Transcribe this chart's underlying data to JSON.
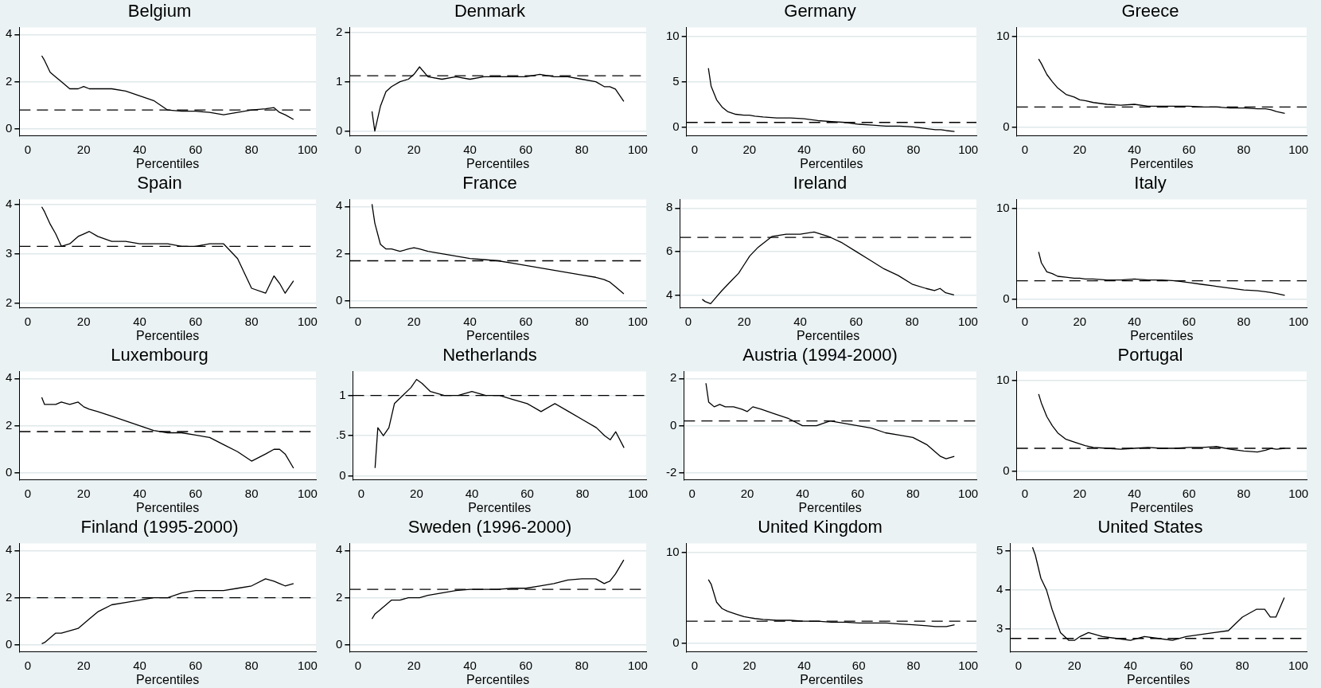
{
  "chart_data": [
    {
      "type": "line",
      "title": "Belgium",
      "xlabel": "Percentiles",
      "x": [
        5,
        6,
        8,
        10,
        12,
        15,
        18,
        20,
        22,
        25,
        30,
        35,
        40,
        45,
        50,
        55,
        60,
        65,
        70,
        75,
        80,
        85,
        88,
        90,
        92,
        95
      ],
      "xlim": [
        -3,
        103
      ],
      "xticks": [
        0,
        20,
        40,
        60,
        80,
        100
      ],
      "ylim": [
        -0.3,
        4.3
      ],
      "yticks": [
        0,
        2,
        4
      ],
      "grid": "y",
      "marker": "none",
      "line_style": "solid",
      "ref_lines": [
        {
          "axis": "y",
          "value": 0.8,
          "line_style": "dashed",
          "color": "#000000"
        }
      ],
      "series": [
        {
          "color": "#000000",
          "values": [
            3.1,
            2.9,
            2.4,
            2.2,
            2.0,
            1.7,
            1.7,
            1.8,
            1.7,
            1.7,
            1.7,
            1.6,
            1.4,
            1.2,
            0.8,
            0.75,
            0.75,
            0.7,
            0.6,
            0.7,
            0.8,
            0.85,
            0.9,
            0.7,
            0.6,
            0.4
          ]
        }
      ]
    },
    {
      "type": "line",
      "title": "Denmark",
      "xlabel": "Percentiles",
      "x": [
        5,
        6,
        8,
        10,
        12,
        15,
        18,
        20,
        22,
        25,
        30,
        35,
        40,
        45,
        50,
        55,
        60,
        65,
        70,
        75,
        80,
        85,
        88,
        90,
        92,
        95
      ],
      "xlim": [
        -3,
        103
      ],
      "xticks": [
        0,
        20,
        40,
        60,
        80,
        100
      ],
      "ylim": [
        -0.1,
        2.1
      ],
      "yticks": [
        0,
        1,
        2
      ],
      "grid": "y",
      "marker": "none",
      "line_style": "solid",
      "ref_lines": [
        {
          "axis": "y",
          "value": 1.12,
          "line_style": "dashed",
          "color": "#000000"
        }
      ],
      "series": [
        {
          "color": "#000000",
          "values": [
            0.4,
            0.0,
            0.5,
            0.8,
            0.9,
            1.0,
            1.05,
            1.15,
            1.3,
            1.1,
            1.05,
            1.1,
            1.05,
            1.1,
            1.1,
            1.1,
            1.1,
            1.15,
            1.1,
            1.1,
            1.05,
            1.0,
            0.9,
            0.9,
            0.85,
            0.6
          ]
        }
      ]
    },
    {
      "type": "line",
      "title": "Germany",
      "xlabel": "Percentiles",
      "x": [
        5,
        6,
        8,
        10,
        12,
        15,
        18,
        20,
        22,
        25,
        30,
        35,
        40,
        45,
        50,
        55,
        60,
        65,
        70,
        75,
        80,
        85,
        88,
        90,
        92,
        95
      ],
      "xlim": [
        -3,
        103
      ],
      "xticks": [
        0,
        20,
        40,
        60,
        80,
        100
      ],
      "ylim": [
        -1,
        11
      ],
      "yticks": [
        0,
        5,
        10
      ],
      "grid": "y",
      "marker": "none",
      "line_style": "solid",
      "ref_lines": [
        {
          "axis": "y",
          "value": 0.5,
          "line_style": "dashed",
          "color": "#000000"
        }
      ],
      "series": [
        {
          "color": "#000000",
          "values": [
            6.5,
            4.5,
            3.0,
            2.2,
            1.7,
            1.4,
            1.3,
            1.3,
            1.2,
            1.1,
            1.0,
            1.0,
            0.9,
            0.7,
            0.6,
            0.5,
            0.3,
            0.2,
            0.1,
            0.1,
            0.0,
            -0.2,
            -0.3,
            -0.3,
            -0.4,
            -0.5
          ]
        }
      ]
    },
    {
      "type": "line",
      "title": "Greece",
      "xlabel": "Percentiles",
      "x": [
        5,
        6,
        8,
        10,
        12,
        15,
        18,
        20,
        22,
        25,
        30,
        35,
        40,
        45,
        50,
        55,
        60,
        65,
        70,
        75,
        80,
        85,
        88,
        90,
        92,
        95
      ],
      "xlim": [
        -3,
        103
      ],
      "xticks": [
        0,
        20,
        40,
        60,
        80,
        100
      ],
      "ylim": [
        -1,
        11
      ],
      "yticks": [
        0,
        10
      ],
      "grid": "y",
      "marker": "none",
      "line_style": "solid",
      "ref_lines": [
        {
          "axis": "y",
          "value": 2.2,
          "line_style": "dashed",
          "color": "#000000"
        }
      ],
      "series": [
        {
          "color": "#000000",
          "values": [
            7.5,
            7,
            5.8,
            5,
            4.3,
            3.6,
            3.3,
            3.0,
            2.9,
            2.7,
            2.5,
            2.4,
            2.5,
            2.3,
            2.3,
            2.3,
            2.3,
            2.2,
            2.2,
            2.1,
            2.1,
            2.0,
            2.0,
            1.9,
            1.7,
            1.5
          ]
        }
      ]
    },
    {
      "type": "line",
      "title": "Spain",
      "xlabel": "Percentiles",
      "x": [
        5,
        6,
        8,
        10,
        12,
        15,
        18,
        20,
        22,
        25,
        30,
        35,
        40,
        45,
        50,
        55,
        60,
        65,
        70,
        75,
        80,
        85,
        88,
        90,
        92,
        95
      ],
      "xlim": [
        -3,
        103
      ],
      "xticks": [
        0,
        20,
        40,
        60,
        80,
        100
      ],
      "ylim": [
        1.9,
        4.1
      ],
      "yticks": [
        2,
        3,
        4
      ],
      "grid": "y",
      "marker": "none",
      "line_style": "solid",
      "ref_lines": [
        {
          "axis": "y",
          "value": 3.15,
          "line_style": "dashed",
          "color": "#000000"
        }
      ],
      "series": [
        {
          "color": "#000000",
          "values": [
            3.95,
            3.85,
            3.6,
            3.4,
            3.15,
            3.2,
            3.35,
            3.4,
            3.45,
            3.35,
            3.25,
            3.25,
            3.2,
            3.2,
            3.2,
            3.15,
            3.15,
            3.2,
            3.2,
            2.9,
            2.3,
            2.2,
            2.55,
            2.4,
            2.2,
            2.45
          ]
        }
      ]
    },
    {
      "type": "line",
      "title": "France",
      "xlabel": "Percentiles",
      "x": [
        5,
        6,
        8,
        10,
        12,
        15,
        18,
        20,
        22,
        25,
        30,
        35,
        40,
        45,
        50,
        55,
        60,
        65,
        70,
        75,
        80,
        85,
        88,
        90,
        92,
        95
      ],
      "xlim": [
        -3,
        103
      ],
      "xticks": [
        0,
        20,
        40,
        60,
        80,
        100
      ],
      "ylim": [
        -0.3,
        4.3
      ],
      "yticks": [
        0,
        2,
        4
      ],
      "grid": "y",
      "marker": "none",
      "line_style": "solid",
      "ref_lines": [
        {
          "axis": "y",
          "value": 1.7,
          "line_style": "dashed",
          "color": "#000000"
        }
      ],
      "series": [
        {
          "color": "#000000",
          "values": [
            4.1,
            3.3,
            2.4,
            2.2,
            2.2,
            2.1,
            2.2,
            2.25,
            2.2,
            2.1,
            2.0,
            1.9,
            1.8,
            1.75,
            1.7,
            1.6,
            1.5,
            1.4,
            1.3,
            1.2,
            1.1,
            1.0,
            0.9,
            0.8,
            0.6,
            0.3
          ]
        }
      ]
    },
    {
      "type": "line",
      "title": "Ireland",
      "xlabel": "Percentiles",
      "x": [
        5,
        6,
        8,
        10,
        12,
        15,
        18,
        20,
        22,
        25,
        30,
        35,
        40,
        45,
        50,
        55,
        60,
        65,
        70,
        75,
        80,
        85,
        88,
        90,
        92,
        95
      ],
      "xlim": [
        -3,
        103
      ],
      "xticks": [
        0,
        20,
        40,
        60,
        80,
        100
      ],
      "ylim": [
        3.4,
        8.4
      ],
      "yticks": [
        4,
        6,
        8
      ],
      "grid": "y",
      "marker": "none",
      "line_style": "solid",
      "ref_lines": [
        {
          "axis": "y",
          "value": 6.65,
          "line_style": "dashed",
          "color": "#000000"
        }
      ],
      "series": [
        {
          "color": "#000000",
          "values": [
            3.8,
            3.7,
            3.6,
            3.9,
            4.2,
            4.6,
            5.0,
            5.4,
            5.8,
            6.2,
            6.7,
            6.8,
            6.8,
            6.9,
            6.7,
            6.4,
            6.0,
            5.6,
            5.2,
            4.9,
            4.5,
            4.3,
            4.2,
            4.3,
            4.1,
            4.0
          ]
        }
      ]
    },
    {
      "type": "line",
      "title": "Italy",
      "xlabel": "Percentiles",
      "x": [
        5,
        6,
        8,
        10,
        12,
        15,
        18,
        20,
        22,
        25,
        30,
        35,
        40,
        45,
        50,
        55,
        60,
        65,
        70,
        75,
        80,
        85,
        88,
        90,
        92,
        95
      ],
      "xlim": [
        -3,
        103
      ],
      "xticks": [
        0,
        20,
        40,
        60,
        80,
        100
      ],
      "ylim": [
        -1,
        11
      ],
      "yticks": [
        0,
        10
      ],
      "grid": "y",
      "marker": "none",
      "line_style": "solid",
      "ref_lines": [
        {
          "axis": "y",
          "value": 2.0,
          "line_style": "dashed",
          "color": "#000000"
        }
      ],
      "series": [
        {
          "color": "#000000",
          "values": [
            5.2,
            4.0,
            3.0,
            2.8,
            2.5,
            2.4,
            2.3,
            2.3,
            2.2,
            2.2,
            2.1,
            2.1,
            2.2,
            2.1,
            2.1,
            2.0,
            1.8,
            1.6,
            1.4,
            1.2,
            1.0,
            0.9,
            0.8,
            0.7,
            0.6,
            0.4
          ]
        }
      ]
    },
    {
      "type": "line",
      "title": "Luxembourg",
      "xlabel": "Percentiles",
      "x": [
        5,
        6,
        8,
        10,
        12,
        15,
        18,
        20,
        22,
        25,
        30,
        35,
        40,
        45,
        50,
        55,
        60,
        65,
        70,
        75,
        80,
        85,
        88,
        90,
        92,
        95
      ],
      "xlim": [
        -3,
        103
      ],
      "xticks": [
        0,
        20,
        40,
        60,
        80,
        100
      ],
      "ylim": [
        -0.3,
        4.3
      ],
      "yticks": [
        0,
        2,
        4
      ],
      "grid": "y",
      "marker": "none",
      "line_style": "solid",
      "ref_lines": [
        {
          "axis": "y",
          "value": 1.75,
          "line_style": "dashed",
          "color": "#000000"
        }
      ],
      "series": [
        {
          "color": "#000000",
          "values": [
            3.2,
            2.9,
            2.9,
            2.9,
            3.0,
            2.9,
            3.0,
            2.8,
            2.7,
            2.6,
            2.4,
            2.2,
            2.0,
            1.8,
            1.7,
            1.7,
            1.6,
            1.5,
            1.2,
            0.9,
            0.5,
            0.8,
            1.0,
            1.0,
            0.8,
            0.2
          ]
        }
      ]
    },
    {
      "type": "line",
      "title": "Netherlands",
      "xlabel": "Percentiles",
      "x": [
        5,
        6,
        8,
        10,
        12,
        15,
        18,
        20,
        22,
        25,
        30,
        35,
        40,
        45,
        50,
        55,
        60,
        65,
        70,
        75,
        80,
        85,
        88,
        90,
        92,
        95
      ],
      "xlim": [
        -3,
        103
      ],
      "xticks": [
        0,
        20,
        40,
        60,
        80,
        100
      ],
      "ylim": [
        -0.05,
        1.3
      ],
      "yticks": [
        0,
        {
          "value": 0.5,
          "label": ".5"
        },
        1
      ],
      "grid": "y",
      "marker": "none",
      "line_style": "solid",
      "ref_lines": [
        {
          "axis": "y",
          "value": 1.0,
          "line_style": "dashed",
          "color": "#000000"
        }
      ],
      "series": [
        {
          "color": "#000000",
          "values": [
            0.1,
            0.6,
            0.5,
            0.6,
            0.9,
            1.0,
            1.1,
            1.2,
            1.15,
            1.05,
            1.0,
            1.0,
            1.05,
            1.0,
            1.0,
            0.95,
            0.9,
            0.8,
            0.9,
            0.8,
            0.7,
            0.6,
            0.5,
            0.45,
            0.55,
            0.35
          ]
        }
      ]
    },
    {
      "type": "line",
      "title": "Austria (1994-2000)",
      "xlabel": "Percentiles",
      "x": [
        5,
        6,
        8,
        10,
        12,
        15,
        18,
        20,
        22,
        25,
        30,
        35,
        40,
        45,
        50,
        55,
        60,
        65,
        70,
        75,
        80,
        85,
        88,
        90,
        92,
        95
      ],
      "xlim": [
        -3,
        103
      ],
      "xticks": [
        0,
        20,
        40,
        60,
        80,
        100
      ],
      "ylim": [
        -2.3,
        2.3
      ],
      "yticks": [
        -2,
        0,
        2
      ],
      "grid": "y",
      "marker": "none",
      "line_style": "solid",
      "ref_lines": [
        {
          "axis": "y",
          "value": 0.2,
          "line_style": "dashed",
          "color": "#000000"
        }
      ],
      "series": [
        {
          "color": "#000000",
          "values": [
            1.8,
            1.0,
            0.8,
            0.9,
            0.8,
            0.8,
            0.7,
            0.6,
            0.8,
            0.7,
            0.5,
            0.3,
            0.0,
            0.0,
            0.2,
            0.1,
            0.0,
            -0.1,
            -0.3,
            -0.4,
            -0.5,
            -0.8,
            -1.1,
            -1.3,
            -1.4,
            -1.3
          ]
        }
      ]
    },
    {
      "type": "line",
      "title": "Portugal",
      "xlabel": "Percentiles",
      "x": [
        5,
        6,
        8,
        10,
        12,
        15,
        18,
        20,
        22,
        25,
        30,
        35,
        40,
        45,
        50,
        55,
        60,
        65,
        70,
        75,
        80,
        85,
        88,
        90,
        92,
        95
      ],
      "xlim": [
        -3,
        103
      ],
      "xticks": [
        0,
        20,
        40,
        60,
        80,
        100
      ],
      "ylim": [
        -1,
        11
      ],
      "yticks": [
        0,
        10
      ],
      "grid": "y",
      "marker": "none",
      "line_style": "solid",
      "ref_lines": [
        {
          "axis": "y",
          "value": 2.5,
          "line_style": "dashed",
          "color": "#000000"
        }
      ],
      "series": [
        {
          "color": "#000000",
          "values": [
            8.5,
            7.5,
            6.0,
            5.0,
            4.2,
            3.5,
            3.2,
            3.0,
            2.8,
            2.6,
            2.5,
            2.4,
            2.5,
            2.6,
            2.5,
            2.5,
            2.6,
            2.6,
            2.7,
            2.4,
            2.2,
            2.1,
            2.3,
            2.5,
            2.4,
            2.5
          ]
        }
      ]
    },
    {
      "type": "line",
      "title": "Finland (1995-2000)",
      "xlabel": "Percentiles",
      "x": [
        5,
        6,
        8,
        10,
        12,
        15,
        18,
        20,
        22,
        25,
        30,
        35,
        40,
        45,
        50,
        55,
        60,
        65,
        70,
        75,
        80,
        85,
        88,
        90,
        92,
        95
      ],
      "xlim": [
        -3,
        103
      ],
      "xticks": [
        0,
        20,
        40,
        60,
        80,
        100
      ],
      "ylim": [
        -0.3,
        4.3
      ],
      "yticks": [
        0,
        2,
        4
      ],
      "grid": "y",
      "marker": "none",
      "line_style": "solid",
      "ref_lines": [
        {
          "axis": "y",
          "value": 2.0,
          "line_style": "dashed",
          "color": "#000000"
        }
      ],
      "series": [
        {
          "color": "#000000",
          "values": [
            0.05,
            0.1,
            0.3,
            0.5,
            0.5,
            0.6,
            0.7,
            0.9,
            1.1,
            1.4,
            1.7,
            1.8,
            1.9,
            2.0,
            2.0,
            2.2,
            2.3,
            2.3,
            2.3,
            2.4,
            2.5,
            2.8,
            2.7,
            2.6,
            2.5,
            2.6
          ]
        }
      ]
    },
    {
      "type": "line",
      "title": "Sweden (1996-2000)",
      "xlabel": "Percentiles",
      "x": [
        5,
        6,
        8,
        10,
        12,
        15,
        18,
        20,
        22,
        25,
        30,
        35,
        40,
        45,
        50,
        55,
        60,
        65,
        70,
        75,
        80,
        85,
        88,
        90,
        92,
        95
      ],
      "xlim": [
        -3,
        103
      ],
      "xticks": [
        0,
        20,
        40,
        60,
        80,
        100
      ],
      "ylim": [
        -0.3,
        4.3
      ],
      "yticks": [
        0,
        2,
        4
      ],
      "grid": "y",
      "marker": "none",
      "line_style": "solid",
      "ref_lines": [
        {
          "axis": "y",
          "value": 2.35,
          "line_style": "dashed",
          "color": "#000000"
        }
      ],
      "series": [
        {
          "color": "#000000",
          "values": [
            1.1,
            1.3,
            1.5,
            1.7,
            1.9,
            1.9,
            2.0,
            2.0,
            2.0,
            2.1,
            2.2,
            2.3,
            2.35,
            2.35,
            2.35,
            2.4,
            2.4,
            2.5,
            2.6,
            2.75,
            2.8,
            2.8,
            2.6,
            2.7,
            3.0,
            3.6
          ]
        }
      ]
    },
    {
      "type": "line",
      "title": "United Kingdom",
      "xlabel": "Percentiles",
      "x": [
        5,
        6,
        8,
        10,
        12,
        15,
        18,
        20,
        22,
        25,
        30,
        35,
        40,
        45,
        50,
        55,
        60,
        65,
        70,
        75,
        80,
        85,
        88,
        90,
        92,
        95
      ],
      "xlim": [
        -3,
        103
      ],
      "xticks": [
        0,
        20,
        40,
        60,
        80,
        100
      ],
      "ylim": [
        -1,
        11
      ],
      "yticks": [
        0,
        10
      ],
      "grid": "y",
      "marker": "none",
      "line_style": "solid",
      "ref_lines": [
        {
          "axis": "y",
          "value": 2.4,
          "line_style": "dashed",
          "color": "#000000"
        }
      ],
      "series": [
        {
          "color": "#000000",
          "values": [
            7.0,
            6.5,
            4.5,
            3.8,
            3.5,
            3.2,
            2.9,
            2.8,
            2.7,
            2.6,
            2.5,
            2.5,
            2.4,
            2.4,
            2.3,
            2.3,
            2.2,
            2.2,
            2.2,
            2.1,
            2.0,
            1.9,
            1.8,
            1.8,
            1.8,
            2.0
          ]
        }
      ]
    },
    {
      "type": "line",
      "title": "United States",
      "xlabel": "Percentiles",
      "x": [
        5,
        6,
        8,
        10,
        12,
        15,
        18,
        20,
        22,
        25,
        30,
        35,
        40,
        45,
        50,
        55,
        60,
        65,
        70,
        75,
        80,
        85,
        88,
        90,
        92,
        95
      ],
      "xlim": [
        -3,
        103
      ],
      "xticks": [
        0,
        20,
        40,
        60,
        80,
        100
      ],
      "ylim": [
        2.4,
        5.2
      ],
      "yticks": [
        3,
        4,
        5
      ],
      "grid": "y",
      "marker": "none",
      "line_style": "solid",
      "ref_lines": [
        {
          "axis": "y",
          "value": 2.75,
          "line_style": "dashed",
          "color": "#000000"
        }
      ],
      "series": [
        {
          "color": "#000000",
          "values": [
            5.1,
            4.9,
            4.3,
            4.0,
            3.5,
            2.9,
            2.7,
            2.7,
            2.8,
            2.9,
            2.8,
            2.75,
            2.7,
            2.8,
            2.75,
            2.7,
            2.8,
            2.85,
            2.9,
            2.95,
            3.3,
            3.5,
            3.5,
            3.3,
            3.3,
            3.8
          ]
        }
      ]
    }
  ]
}
